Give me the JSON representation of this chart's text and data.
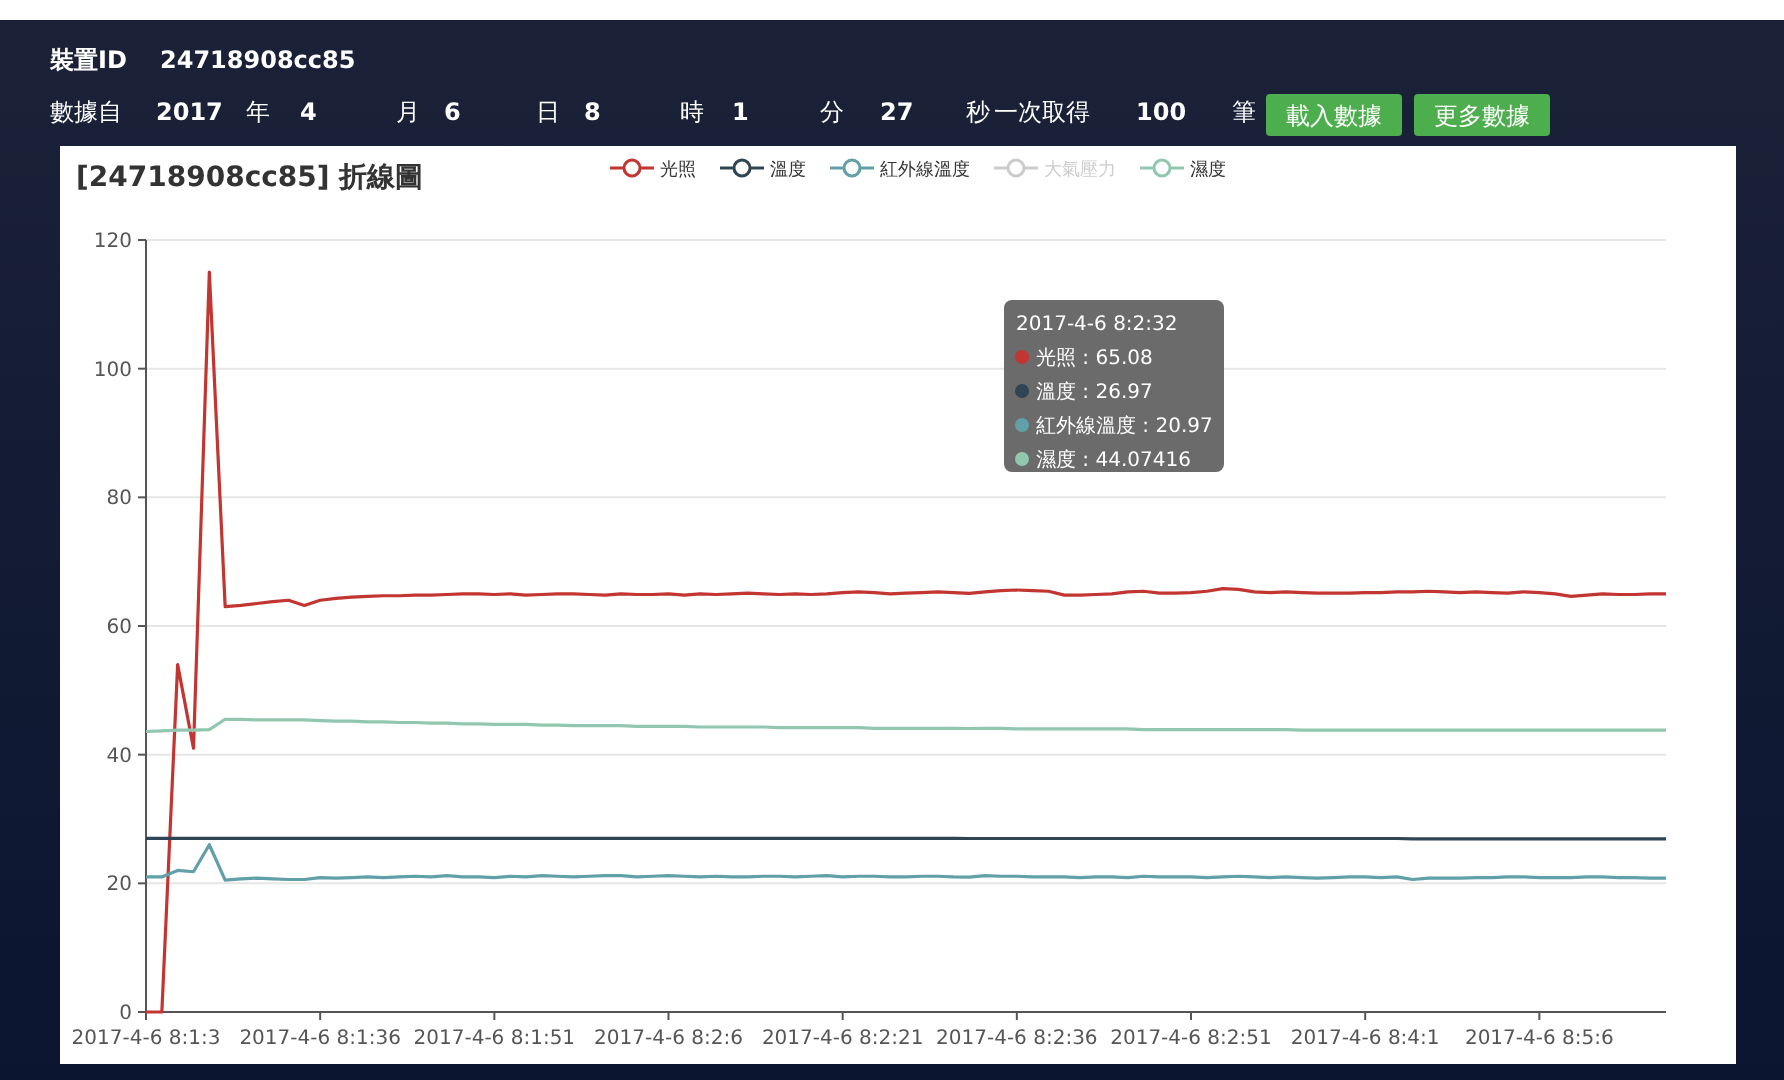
{
  "chart_data": {
    "type": "line",
    "title": "[24718908cc85] 折線圖",
    "categories": [
      "2017-4-6 8:1:3",
      null,
      null,
      null,
      null,
      null,
      null,
      null,
      null,
      null,
      null,
      "2017-4-6 8:1:36",
      null,
      null,
      null,
      null,
      null,
      null,
      null,
      null,
      null,
      null,
      "2017-4-6 8:1:51",
      null,
      null,
      null,
      null,
      null,
      null,
      null,
      null,
      null,
      null,
      "2017-4-6 8:2:6",
      null,
      null,
      null,
      null,
      null,
      null,
      null,
      null,
      null,
      null,
      "2017-4-6 8:2:21",
      null,
      null,
      null,
      null,
      null,
      null,
      null,
      null,
      null,
      null,
      "2017-4-6 8:2:36",
      null,
      null,
      null,
      null,
      null,
      null,
      null,
      null,
      null,
      null,
      "2017-4-6 8:2:51",
      null,
      null,
      null,
      null,
      null,
      null,
      null,
      null,
      null,
      null,
      "2017-4-6 8:4:1",
      null,
      null,
      null,
      null,
      null,
      null,
      null,
      null,
      null,
      null,
      "2017-4-6 8:5:6",
      null,
      null,
      null,
      null,
      null,
      null,
      null,
      null
    ],
    "series": [
      {
        "name": "光照",
        "color": "#c23531",
        "values": [
          0,
          0,
          54,
          41,
          115,
          63,
          63.2,
          63.5,
          63.8,
          64,
          63.2,
          64,
          64.3,
          64.5,
          64.6,
          64.7,
          64.7,
          64.8,
          64.8,
          64.9,
          65,
          65,
          64.9,
          65,
          64.8,
          64.9,
          65,
          65,
          64.9,
          64.8,
          65,
          64.9,
          64.9,
          65,
          64.8,
          65,
          64.9,
          65,
          65.1,
          65,
          64.9,
          65,
          64.9,
          65,
          65.2,
          65.3,
          65.2,
          65,
          65.1,
          65.2,
          65.3,
          65.2,
          65.08,
          65.3,
          65.5,
          65.6,
          65.5,
          65.4,
          64.8,
          64.8,
          64.9,
          65,
          65.3,
          65.4,
          65.1,
          65.1,
          65.2,
          65.4,
          65.8,
          65.7,
          65.3,
          65.2,
          65.3,
          65.2,
          65.1,
          65.1,
          65.1,
          65.2,
          65.2,
          65.3,
          65.3,
          65.4,
          65.3,
          65.2,
          65.3,
          65.2,
          65.1,
          65.3,
          65.2,
          65,
          64.6,
          64.8,
          65,
          64.9,
          64.9,
          65,
          65
        ]
      },
      {
        "name": "溫度",
        "color": "#2f4554",
        "values": [
          27,
          27,
          27,
          27,
          27,
          27,
          27,
          27,
          27,
          27,
          27,
          27,
          27,
          27,
          27,
          27,
          27,
          27,
          27,
          27,
          27,
          27,
          27,
          27,
          27,
          27,
          27,
          27,
          27,
          27,
          27,
          27,
          27,
          27,
          27,
          27,
          27,
          27,
          27,
          27,
          27,
          27,
          27,
          27,
          27,
          27,
          27,
          27,
          27,
          27,
          27,
          27,
          26.97,
          26.97,
          26.97,
          26.97,
          26.97,
          26.97,
          26.97,
          26.97,
          26.97,
          26.97,
          26.97,
          26.97,
          26.97,
          26.97,
          26.97,
          26.97,
          26.97,
          26.97,
          26.97,
          26.97,
          26.97,
          26.97,
          26.97,
          26.97,
          26.97,
          26.97,
          26.97,
          26.97,
          26.9,
          26.9,
          26.9,
          26.9,
          26.9,
          26.9,
          26.9,
          26.9,
          26.9,
          26.9,
          26.9,
          26.9,
          26.9,
          26.9,
          26.9,
          26.9,
          26.9
        ]
      },
      {
        "name": "紅外線溫度",
        "color": "#61a0a8",
        "values": [
          21,
          21,
          22,
          21.8,
          26,
          20.5,
          20.7,
          20.8,
          20.7,
          20.6,
          20.6,
          20.9,
          20.8,
          20.9,
          21,
          20.9,
          21,
          21.1,
          21,
          21.2,
          21,
          21,
          20.9,
          21.1,
          21,
          21.2,
          21.1,
          21,
          21.1,
          21.2,
          21.2,
          21,
          21.1,
          21.2,
          21.1,
          21,
          21.1,
          21,
          21,
          21.1,
          21.1,
          21,
          21.1,
          21.2,
          21,
          21.1,
          21.1,
          21,
          21,
          21.1,
          21.1,
          21,
          20.97,
          21.2,
          21.1,
          21.1,
          21,
          21,
          21,
          20.9,
          21,
          21,
          20.9,
          21.1,
          21,
          21,
          21,
          20.9,
          21,
          21.1,
          21,
          20.9,
          21,
          20.9,
          20.8,
          20.9,
          21,
          21,
          20.9,
          21,
          20.6,
          20.8,
          20.8,
          20.8,
          20.9,
          20.9,
          21,
          21,
          20.9,
          20.9,
          20.9,
          21,
          21,
          20.9,
          20.9,
          20.8,
          20.8
        ]
      },
      {
        "name": "大氣壓力",
        "color": "#cccccc",
        "values": [
          null,
          null,
          null,
          null,
          null,
          null,
          null,
          null,
          null,
          null,
          null,
          null,
          null,
          null,
          null,
          null,
          null,
          null,
          null,
          null,
          null,
          null,
          null,
          null,
          null,
          null,
          null,
          null,
          null,
          null,
          null,
          null,
          null,
          null,
          null,
          null,
          null,
          null,
          null,
          null,
          null,
          null,
          null,
          null,
          null,
          null,
          null,
          null,
          null,
          null,
          null,
          null,
          null,
          null,
          null,
          null,
          null,
          null,
          null,
          null,
          null,
          null,
          null,
          null,
          null,
          null,
          null,
          null,
          null,
          null,
          null,
          null,
          null,
          null,
          null,
          null,
          null,
          null,
          null,
          null,
          null,
          null,
          null,
          null,
          null,
          null,
          null,
          null,
          null,
          null,
          null,
          null,
          null,
          null,
          null,
          null,
          null
        ]
      },
      {
        "name": "濕度",
        "color": "#91c7ae",
        "values": [
          43.6,
          43.7,
          43.8,
          43.8,
          43.9,
          45.5,
          45.5,
          45.4,
          45.4,
          45.4,
          45.4,
          45.3,
          45.2,
          45.2,
          45.1,
          45.1,
          45,
          45,
          44.9,
          44.9,
          44.8,
          44.8,
          44.7,
          44.7,
          44.7,
          44.6,
          44.6,
          44.5,
          44.5,
          44.5,
          44.5,
          44.4,
          44.4,
          44.4,
          44.4,
          44.3,
          44.3,
          44.3,
          44.3,
          44.3,
          44.2,
          44.2,
          44.2,
          44.2,
          44.2,
          44.2,
          44.1,
          44.1,
          44.1,
          44.1,
          44.1,
          44.1,
          44.07,
          44.1,
          44.1,
          44,
          44,
          44,
          44,
          44,
          44,
          44,
          44,
          43.9,
          43.9,
          43.9,
          43.9,
          43.9,
          43.9,
          43.9,
          43.9,
          43.9,
          43.9,
          43.8,
          43.8,
          43.8,
          43.8,
          43.8,
          43.8,
          43.8,
          43.8,
          43.8,
          43.8,
          43.8,
          43.8,
          43.8,
          43.8,
          43.8,
          43.8,
          43.8,
          43.8,
          43.8,
          43.8,
          43.8,
          43.8,
          43.8,
          43.8
        ]
      }
    ],
    "ylim": [
      0,
      120
    ],
    "yticks": [
      0,
      20,
      40,
      60,
      80,
      100,
      120
    ],
    "grid": "y",
    "legend": "top",
    "annotations": [
      "裝置ID",
      "24718908cc85",
      "數據自",
      "2017",
      "年",
      "4",
      "月",
      "6",
      "日",
      "8",
      "時",
      "1",
      "分",
      "27",
      "秒",
      "一次取得",
      "100",
      "筆",
      "載入數據",
      "更多數據",
      "2017-4-6 8:2:32",
      "光照 : 65.08",
      "溫度 : 26.97",
      "紅外線溫度 : 20.97",
      "濕度 : 44.07416"
    ]
  }
}
